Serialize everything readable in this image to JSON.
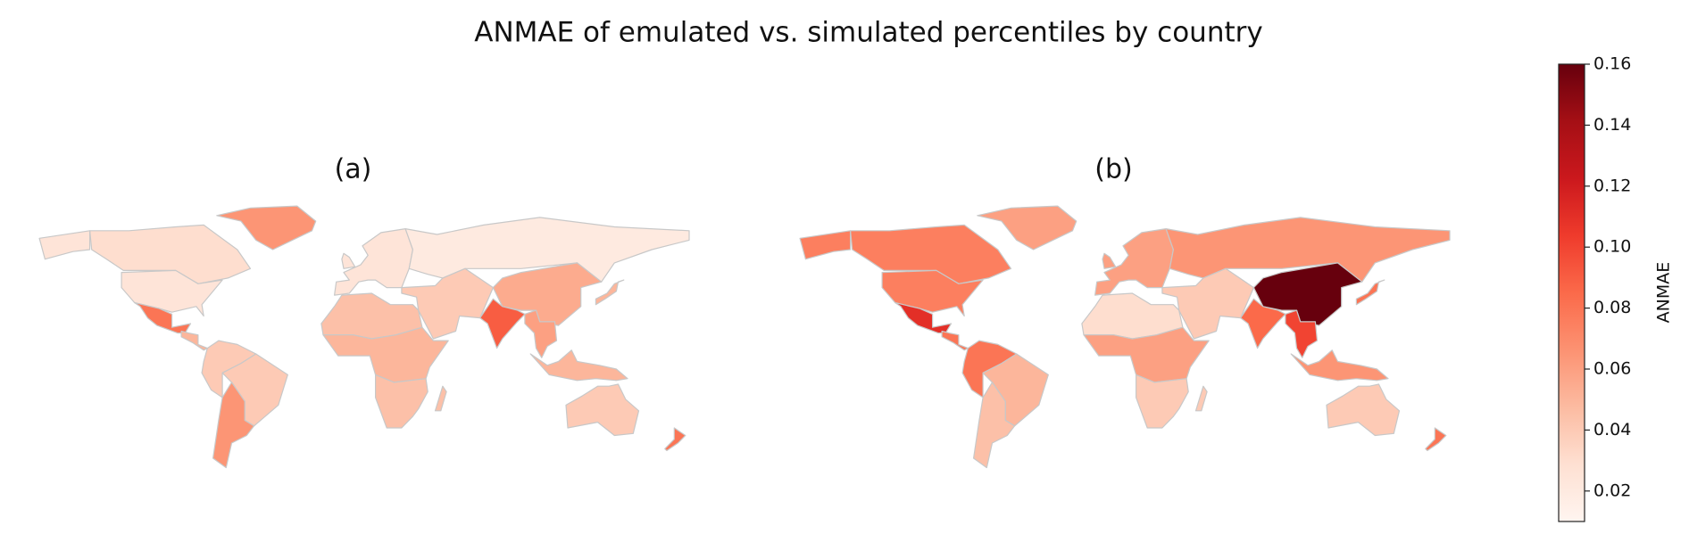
{
  "chart_data": {
    "type": "choropleth",
    "title": "ANMAE of emulated vs. simulated percentiles by country",
    "panels": [
      {
        "label": "(a)",
        "values": [
          0.03,
          0.025,
          0.08,
          0.05,
          0.04,
          0.04,
          0.065,
          0.065,
          0.025,
          0.02,
          0.055,
          0.09,
          0.06,
          0.04,
          0.045,
          0.05,
          0.045,
          0.04,
          0.05,
          0.05,
          0.08
        ]
      },
      {
        "label": "(b)",
        "values": [
          0.075,
          0.075,
          0.11,
          0.08,
          0.08,
          0.05,
          0.045,
          0.06,
          0.06,
          0.065,
          0.16,
          0.085,
          0.1,
          0.04,
          0.03,
          0.06,
          0.04,
          0.04,
          0.08,
          0.065,
          0.08
        ]
      }
    ],
    "colorbar_label": "ANMAE",
    "vlim": [
      0.01,
      0.16
    ],
    "ticks": [
      0.02,
      0.04,
      0.06,
      0.08,
      {
        "value": 0.1,
        "label": "0.10"
      },
      0.12,
      0.14,
      0.16
    ],
    "colormap": [
      "#fff5f0",
      "#fee0d2",
      "#fcbba1",
      "#fc9272",
      "#fb6a4a",
      "#ef3b2c",
      "#cb181d",
      "#a50f15",
      "#67000d"
    ]
  }
}
